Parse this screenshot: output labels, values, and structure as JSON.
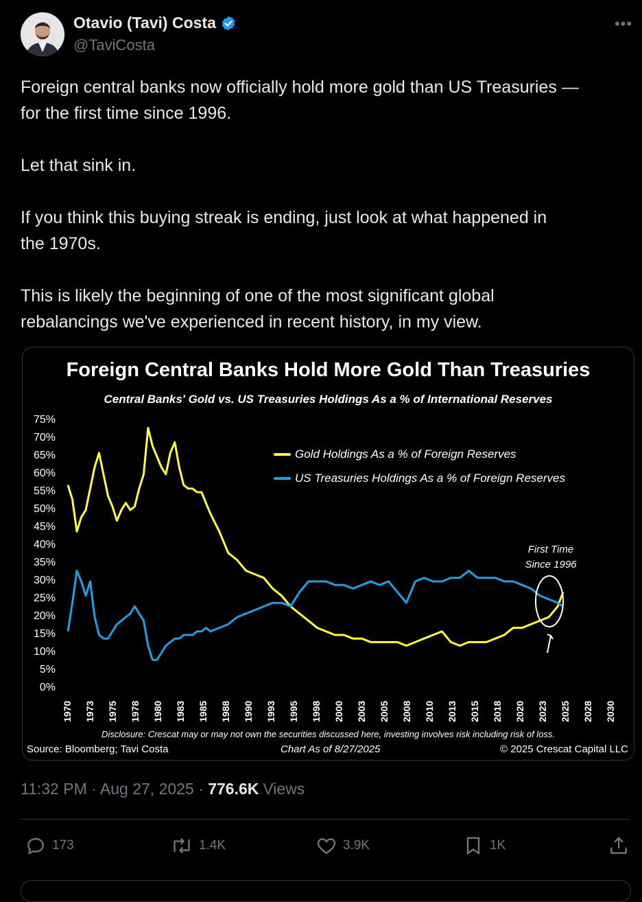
{
  "author": {
    "name": "Otavio (Tavi) Costa",
    "handle": "@TaviCosta"
  },
  "tweet": {
    "paragraphs": [
      "Foreign central banks now officially hold more gold than US Treasuries —\nfor the first time since 1996.",
      "Let that sink in.",
      "If you think this buying streak is ending, just look at what happened in\nthe 1970s.",
      "This is likely the beginning of one of the most significant global\nrebalancings we've experienced in recent history, in my view."
    ],
    "timestamp": "11:32 PM · Aug 27, 2025 · ",
    "views_count": "776.6K",
    "views_label": "Views"
  },
  "actions": {
    "replies": "173",
    "reposts": "1.4K",
    "likes": "3.9K",
    "bookmarks": "1K"
  },
  "colors": {
    "gold": "#ffff33",
    "treasuries": "#1ea0e6",
    "verified": "#1d9bf0"
  },
  "chart_data": {
    "type": "line",
    "title": "Foreign Central Banks Hold More Gold Than Treasuries",
    "subtitle": "Central Banks' Gold vs. US Treasuries Holdings As a % of International Reserves",
    "xlim": [
      1970,
      2031
    ],
    "ylim": [
      0,
      75
    ],
    "ytick_labels": [
      "75%",
      "70%",
      "65%",
      "60%",
      "55%",
      "50%",
      "45%",
      "40%",
      "35%",
      "30%",
      "25%",
      "20%",
      "15%",
      "10%",
      "5%",
      "0%"
    ],
    "xtick_labels": [
      "1970",
      "1973",
      "1975",
      "1978",
      "1980",
      "1983",
      "1985",
      "1988",
      "1990",
      "1993",
      "1995",
      "1998",
      "2000",
      "2003",
      "2005",
      "2008",
      "2010",
      "2013",
      "2015",
      "2018",
      "2020",
      "2023",
      "2025",
      "2028",
      "2030"
    ],
    "series": [
      {
        "name": "Gold Holdings As a % of Foreign Reserves",
        "color": "#ffff33",
        "x": [
          1970,
          1970.5,
          1971,
          1971.5,
          1972,
          1972.5,
          1973,
          1973.5,
          1974,
          1974.5,
          1975,
          1975.5,
          1976,
          1976.5,
          1977,
          1977.5,
          1978,
          1978.5,
          1979,
          1979.5,
          1980,
          1980.5,
          1981,
          1981.5,
          1982,
          1982.5,
          1983,
          1983.5,
          1984,
          1984.5,
          1985,
          1985.5,
          1986,
          1987,
          1988,
          1989,
          1990,
          1991,
          1992,
          1993,
          1994,
          1995,
          1996,
          1997,
          1998,
          1999,
          2000,
          2001,
          2002,
          2003,
          2004,
          2005,
          2006,
          2007,
          2008,
          2009,
          2010,
          2011,
          2012,
          2013,
          2014,
          2015,
          2016,
          2017,
          2018,
          2019,
          2020,
          2021,
          2022,
          2023,
          2024,
          2025,
          2025.6
        ],
        "y": [
          57,
          53,
          44,
          48,
          50,
          56,
          62,
          66,
          60,
          54,
          51,
          47,
          50,
          52,
          50,
          51,
          56,
          60,
          73,
          68,
          65,
          62,
          60,
          66,
          69,
          62,
          57,
          56,
          56,
          55,
          55,
          52,
          49,
          44,
          38,
          36,
          33,
          32,
          31,
          28,
          26,
          23,
          21,
          19,
          17,
          16,
          15,
          15,
          14,
          14,
          13,
          13,
          13,
          13,
          12,
          13,
          14,
          15,
          16,
          13,
          12,
          13,
          13,
          13,
          14,
          15,
          17,
          17,
          18,
          19,
          20,
          23,
          27
        ]
      },
      {
        "name": "US Treasuries Holdings As a % of Foreign Reserves",
        "color": "#1ea0e6",
        "x": [
          1970,
          1970.5,
          1971,
          1971.5,
          1972,
          1972.5,
          1973,
          1973.5,
          1974,
          1974.5,
          1975,
          1975.5,
          1976,
          1976.5,
          1977,
          1977.5,
          1978,
          1978.5,
          1979,
          1979.5,
          1980,
          1980.5,
          1981,
          1981.5,
          1982,
          1982.5,
          1983,
          1983.5,
          1984,
          1984.5,
          1985,
          1985.5,
          1986,
          1987,
          1988,
          1989,
          1990,
          1991,
          1992,
          1993,
          1994,
          1995,
          1996,
          1997,
          1998,
          1999,
          2000,
          2001,
          2002,
          2003,
          2004,
          2005,
          2006,
          2007,
          2008,
          2009,
          2010,
          2011,
          2012,
          2013,
          2014,
          2015,
          2016,
          2017,
          2018,
          2019,
          2020,
          2021,
          2022,
          2023,
          2024,
          2025,
          2025.6
        ],
        "y": [
          16,
          24,
          33,
          30,
          26,
          30,
          20,
          15,
          14,
          14,
          16,
          18,
          19,
          20,
          21,
          23,
          21,
          19,
          12,
          8,
          8,
          10,
          12,
          13,
          14,
          14,
          15,
          15,
          15,
          16,
          16,
          17,
          16,
          17,
          18,
          20,
          21,
          22,
          23,
          24,
          24,
          23,
          27,
          30,
          30,
          30,
          29,
          29,
          28,
          29,
          30,
          29,
          30,
          27,
          24,
          30,
          31,
          30,
          30,
          31,
          31,
          33,
          31,
          31,
          31,
          30,
          30,
          29,
          28,
          26,
          25,
          24,
          23
        ]
      }
    ],
    "legend_position": "top-right",
    "annotation": "First Time\nSince 1996",
    "disclosure": "Disclosure: Crescat may or may not own the securities discussed here, investing involves risk including risk of loss.",
    "source": "Source: Bloomberg; Tavi Costa",
    "as_of": "Chart As of 8/27/2025",
    "copyright": "© 2025 Crescat Capital LLC"
  }
}
